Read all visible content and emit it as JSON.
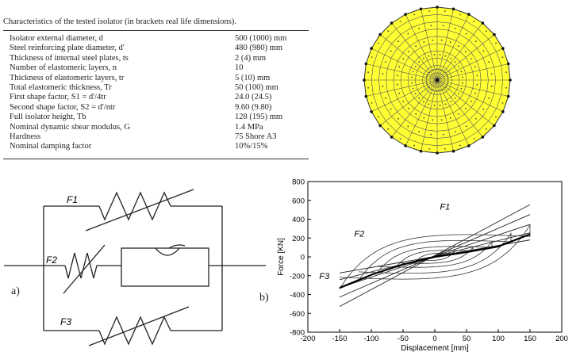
{
  "table": {
    "caption": "Characteristics of the tested isolator (in brackets real life dimensions).",
    "rows": [
      {
        "label": "Isolator external diameter, d",
        "value": "500 (1000) mm"
      },
      {
        "label": "Steel reinforcing plate diameter, d'",
        "value": "480 (980) mm"
      },
      {
        "label": "Thickness of internal steel plates, ts",
        "value": "2 (4) mm"
      },
      {
        "label": "Number of elastomeric layers, n",
        "value": "10"
      },
      {
        "label": "Thickness of elastomeric layers, tr",
        "value": "5 (10) mm"
      },
      {
        "label": "Total elastomeric thickness, Tr",
        "value": "50 (100) mm"
      },
      {
        "label": "First shape factor, S1 = d'/4tr",
        "value": "24.0 (24.5)"
      },
      {
        "label": "Second shape factor, S2 = d'/ntr",
        "value": "9.60 (9.80)"
      },
      {
        "label": "Full isolator height, Tb",
        "value": "128 (195) mm"
      },
      {
        "label": "Nominal dynamic shear modulus, G",
        "value": "1.4 MPa"
      },
      {
        "label": "Hardness",
        "value": "75 Shore A3"
      },
      {
        "label": "Nominal damping factor",
        "value": "10%/15%"
      }
    ]
  },
  "schematic": {
    "panel_label": "a)",
    "f1": "F1",
    "f2": "F2",
    "f3": "F3"
  },
  "mesh": {
    "fill_color": "#ffff33"
  },
  "chart_data": {
    "type": "line",
    "panel_label": "b)",
    "xlabel": "Displacement [mm]",
    "ylabel": "Force [KN]",
    "xlim": [
      -200,
      200
    ],
    "ylim": [
      -800,
      800
    ],
    "xticks": [
      -200,
      -150,
      -100,
      -50,
      0,
      50,
      100,
      150,
      200
    ],
    "yticks": [
      -800,
      -600,
      -400,
      -200,
      0,
      200,
      400,
      600,
      800
    ],
    "curve_labels": [
      "F1",
      "F2",
      "F3"
    ],
    "F1_slopes": [
      1.2,
      1.7,
      2.3,
      3.0,
      3.7
    ],
    "F2_loops": [
      {
        "amp": 30,
        "f": 55
      },
      {
        "amp": 60,
        "f": 100
      },
      {
        "amp": 90,
        "f": 160
      },
      {
        "amp": 120,
        "f": 250
      },
      {
        "amp": 150,
        "f": 340
      }
    ],
    "F3_backbone": [
      {
        "x": -150,
        "y": -330
      },
      {
        "x": -100,
        "y": -190
      },
      {
        "x": -50,
        "y": -80
      },
      {
        "x": 0,
        "y": 0
      },
      {
        "x": 50,
        "y": 50
      },
      {
        "x": 100,
        "y": 110
      },
      {
        "x": 150,
        "y": 240
      }
    ]
  }
}
